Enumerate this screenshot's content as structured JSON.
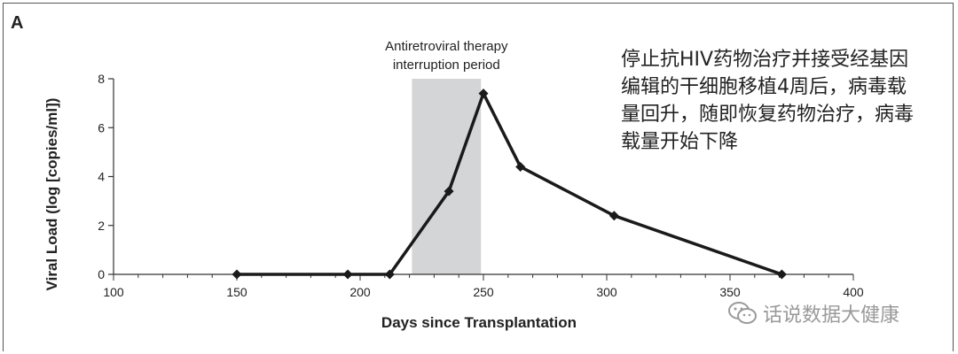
{
  "panel_label": "A",
  "annotation_text": "停止抗HIV药物治疗并接受经基因编辑的干细胞移植4周后，病毒载量回升，随即恢复药物治疗，病毒载量开始下降",
  "watermark": {
    "text": "话说数据大健康",
    "icon": "wechat-icon"
  },
  "colors": {
    "line": "#1a1a1a",
    "shade": "#d3d5d6",
    "text": "#222222",
    "watermark": "#9a9a9a"
  },
  "chart_data": {
    "type": "line",
    "title": "",
    "xlabel": "Days since Transplantation",
    "ylabel": "Viral Load (log [copies/ml])",
    "xlim": [
      100,
      400
    ],
    "ylim": [
      0,
      8
    ],
    "xticks": [
      100,
      150,
      200,
      250,
      300,
      350,
      400
    ],
    "yticks": [
      0,
      2,
      4,
      6,
      8
    ],
    "grid": false,
    "series": [
      {
        "marker": "diamond",
        "x": [
          150,
          195,
          212,
          236,
          250,
          265,
          303,
          371
        ],
        "y": [
          0,
          0,
          0,
          3.4,
          7.4,
          4.4,
          2.4,
          0
        ]
      }
    ],
    "shaded_regions": [
      {
        "x_start": 221,
        "x_end": 249,
        "label": "Antiretroviral therapy interruption period"
      }
    ]
  }
}
